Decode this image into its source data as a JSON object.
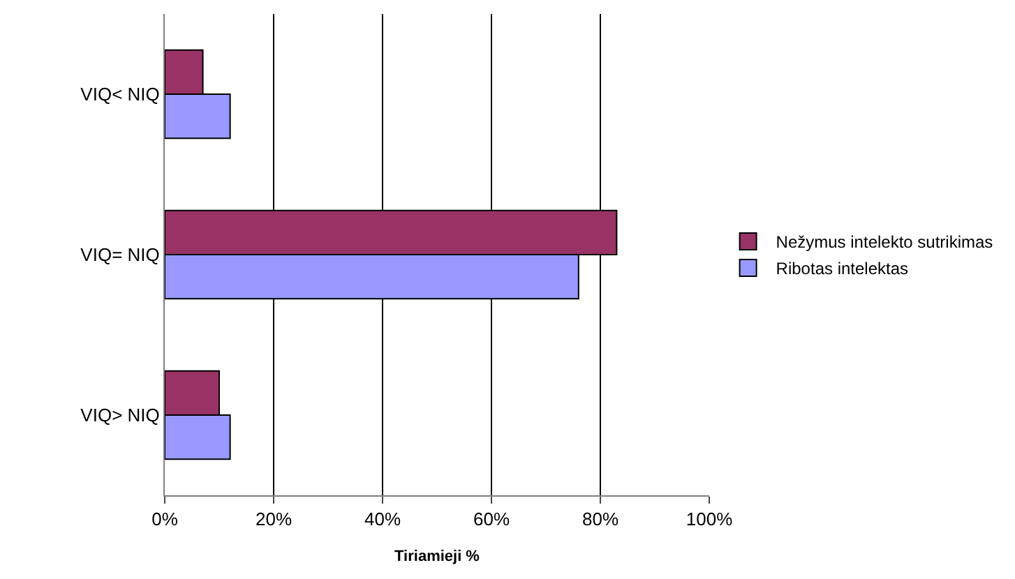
{
  "chart_data": {
    "type": "bar",
    "orientation": "horizontal",
    "xlabel": "Tiriamieji %",
    "categories": [
      "VIQ< NIQ",
      "VIQ= NIQ",
      "VIQ> NIQ"
    ],
    "series": [
      {
        "name": "Nežymus intelekto sutrikimas",
        "color": "#993366",
        "values": [
          7,
          83,
          10
        ]
      },
      {
        "name": "Ribotas intelektas",
        "color": "#9999ff",
        "values": [
          12,
          76,
          12
        ]
      }
    ],
    "xlim": [
      0,
      100
    ],
    "xticks": [
      {
        "value": 0,
        "label": "0%"
      },
      {
        "value": 20,
        "label": "20%"
      },
      {
        "value": 40,
        "label": "40%"
      },
      {
        "value": 60,
        "label": "60%"
      },
      {
        "value": 80,
        "label": "80%"
      },
      {
        "value": 100,
        "label": "100%"
      }
    ],
    "grid": "x",
    "legend": "right"
  }
}
